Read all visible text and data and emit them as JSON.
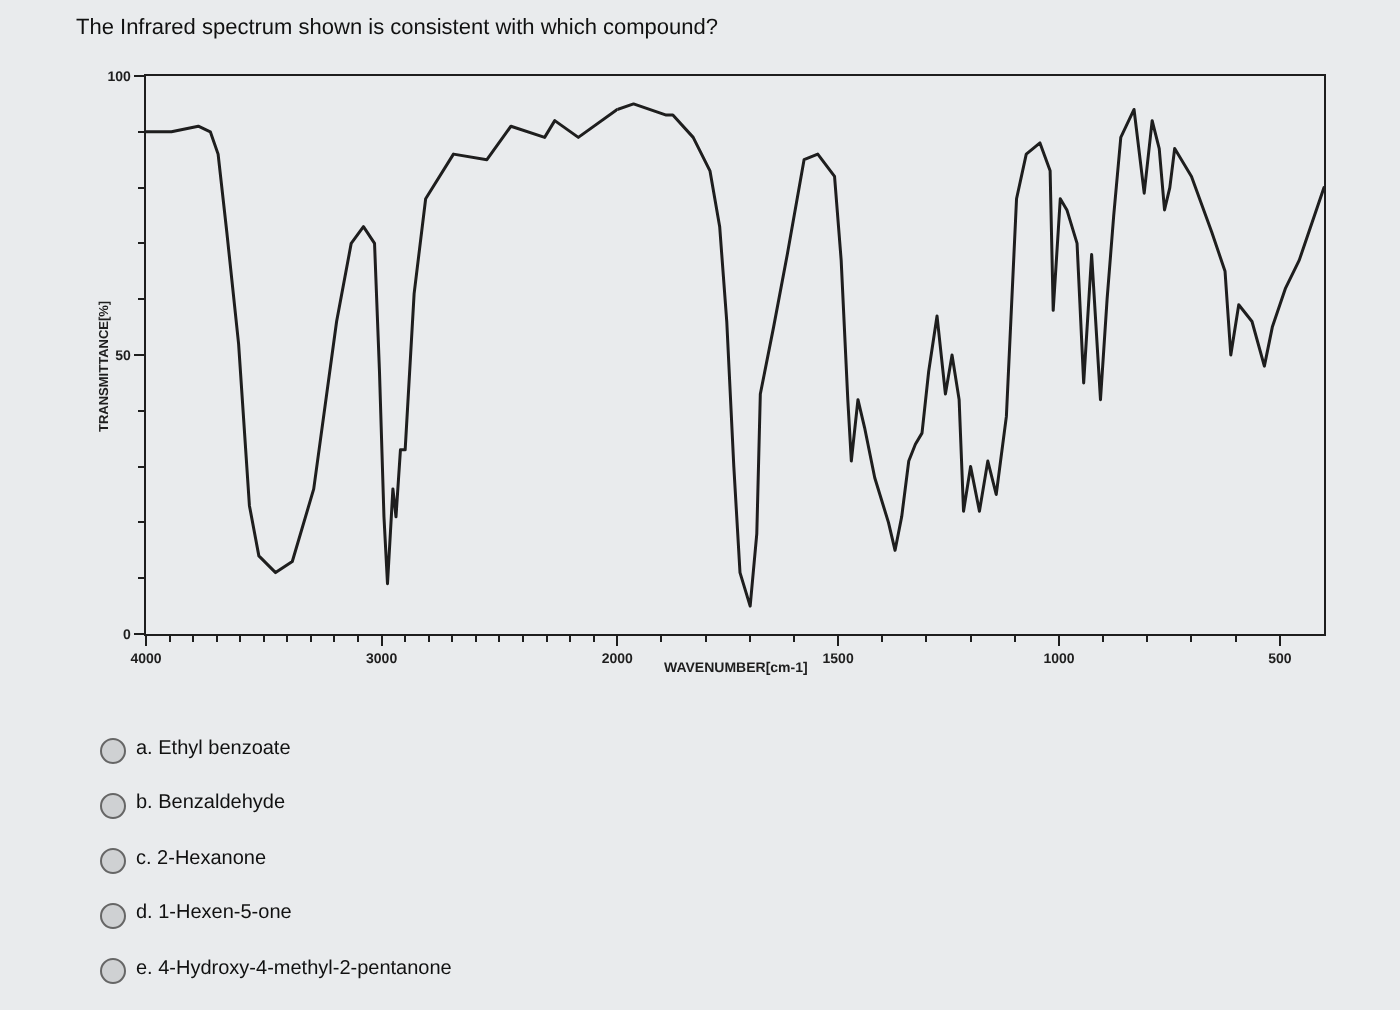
{
  "chart_data": [
    {
      "type": "line",
      "title": "The Infrared spectrum shown is consistent with which compound?",
      "ylabel": "TRANSMITTANCE[%]",
      "annotations": [
        "a. Ethyl benzoate",
        "b. Benzaldehyde",
        "c. 2-Hexanone",
        "d. 1-Hexen-5-one",
        "e. 4-Hydroxy-4-methyl-2-pentanone"
      ],
      "x": [
        4000,
        3892,
        3778,
        3727,
        3694,
        3657,
        3607,
        3561,
        3521,
        3450,
        3379,
        3288,
        3191,
        3129,
        3077,
        3030,
        3009,
        2990,
        2975,
        2952,
        2939,
        2920,
        2900,
        2862,
        2813,
        2695,
        2553,
        2451,
        2308,
        2265,
        2165,
        2000
      ],
      "values": [
        90,
        90,
        91,
        90,
        86,
        72,
        52,
        23,
        14,
        11,
        13,
        26,
        56,
        70,
        73,
        70,
        47,
        21,
        9,
        26,
        21,
        33,
        33,
        61,
        78,
        86,
        85,
        91,
        89,
        92,
        89,
        94
      ],
      "color": "#1e1e1e",
      "xlim": [
        4000,
        2000
      ],
      "xticks": [
        4000,
        {
          "value": 3900,
          "label": null
        },
        {
          "value": 3800,
          "label": null
        },
        {
          "value": 3700,
          "label": null
        },
        {
          "value": 3600,
          "label": null
        },
        {
          "value": 3500,
          "label": null
        },
        {
          "value": 3400,
          "label": null
        },
        {
          "value": 3300,
          "label": null
        },
        {
          "value": 3200,
          "label": null
        },
        {
          "value": 3100,
          "label": null
        },
        3000,
        {
          "value": 2900,
          "label": null
        },
        {
          "value": 2800,
          "label": null
        },
        {
          "value": 2700,
          "label": null
        },
        {
          "value": 2600,
          "label": null
        },
        {
          "value": 2500,
          "label": null
        },
        {
          "value": 2400,
          "label": null
        },
        {
          "value": 2300,
          "label": null
        },
        {
          "value": 2200,
          "label": null
        },
        {
          "value": 2100,
          "label": null
        }
      ],
      "ylim": [
        0,
        100
      ],
      "yticks": [
        0,
        {
          "value": 10,
          "label": null
        },
        {
          "value": 20,
          "label": null
        },
        {
          "value": 30,
          "label": null
        },
        {
          "value": 40,
          "label": null
        },
        50,
        {
          "value": 60,
          "label": null
        },
        {
          "value": 70,
          "label": null
        },
        {
          "value": 80,
          "label": null
        },
        {
          "value": 90,
          "label": null
        },
        100
      ]
    },
    {
      "type": "line",
      "xlabel": "WAVENUMBER[cm-1]",
      "x": [
        2000,
        1963,
        1889,
        1874,
        1828,
        1790,
        1768,
        1752,
        1736,
        1722,
        1699,
        1684,
        1676,
        1646,
        1615,
        1577,
        1546,
        1508,
        1493,
        1478,
        1470,
        1455,
        1440,
        1417,
        1386,
        1371,
        1356,
        1340,
        1325,
        1310,
        1295,
        1276,
        1257,
        1242,
        1226,
        1216,
        1200,
        1180,
        1161,
        1142,
        1119,
        1096,
        1074,
        1043,
        1020,
        1013,
        997,
        982,
        959,
        944,
        926,
        906,
        891,
        876,
        860,
        830,
        807,
        789,
        773,
        761,
        749,
        738,
        700,
        654,
        624,
        611,
        593,
        563,
        535,
        517,
        487,
        456,
        400
      ],
      "values": [
        94,
        95,
        93,
        93,
        89,
        83,
        73,
        56,
        30,
        11,
        5,
        18,
        43,
        55,
        68,
        85,
        86,
        82,
        67,
        42,
        31,
        42,
        37,
        28,
        20,
        15,
        21,
        31,
        34,
        36,
        47,
        57,
        43,
        50,
        42,
        22,
        30,
        22,
        31,
        25,
        39,
        78,
        86,
        88,
        83,
        58,
        78,
        76,
        70,
        45,
        68,
        42,
        60,
        75,
        89,
        94,
        79,
        92,
        87,
        76,
        80,
        87,
        82,
        72,
        65,
        50,
        59,
        56,
        48,
        55,
        62,
        67,
        80
      ],
      "color": "#1e1e1e",
      "xlim": [
        2000,
        400
      ],
      "xticks": [
        2000,
        {
          "value": 1900,
          "label": null
        },
        {
          "value": 1800,
          "label": null
        },
        {
          "value": 1700,
          "label": null
        },
        {
          "value": 1600,
          "label": null
        },
        1500,
        {
          "value": 1400,
          "label": null
        },
        {
          "value": 1300,
          "label": null
        },
        {
          "value": 1200,
          "label": null
        },
        {
          "value": 1100,
          "label": null
        },
        1000,
        {
          "value": 900,
          "label": null
        },
        {
          "value": 800,
          "label": null
        },
        {
          "value": 700,
          "label": null
        },
        {
          "value": 600,
          "label": null
        },
        500
      ],
      "ylim": [
        0,
        100
      ],
      "tick_labels": "x"
    }
  ]
}
